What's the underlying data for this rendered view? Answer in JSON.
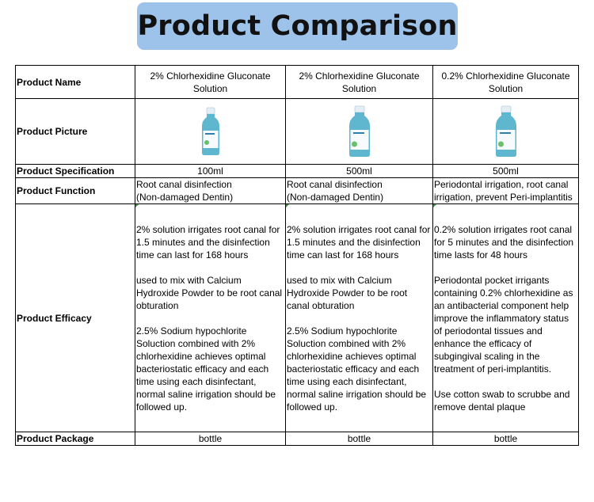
{
  "title": "Product Comparison",
  "labels": {
    "name": "Product Name",
    "picture": "Product Picture",
    "spec": "Product Specification",
    "function": "Product Function",
    "efficacy": "Product Efficacy",
    "package": "Product Package"
  },
  "products": [
    {
      "name": "2% Chlorhexidine Gluconate Solution",
      "bottle_icon": "small-bottle-icon",
      "spec": "100ml",
      "function": [
        "Root canal disinfection",
        "(Non-damaged Dentin)"
      ],
      "efficacy": [
        "2% solution irrigates root canal for 1.5 minutes and the disinfection time can last for 168 hours",
        "used to mix with Calcium Hydroxide Powder to be root canal obturation",
        "2.5% Sodium hypochlorite Soluction combined with 2% chlorhexidine achieves optimal bacteriostatic efficacy and each time using each disinfectant, normal saline irrigation should be followed up."
      ],
      "package": "bottle"
    },
    {
      "name": "2% Chlorhexidine Gluconate Solution",
      "bottle_icon": "large-bottle-icon",
      "spec": "500ml",
      "function": [
        "Root canal disinfection",
        "(Non-damaged Dentin)"
      ],
      "efficacy": [
        "2% solution irrigates root canal for 1.5 minutes and the disinfection time can last for 168 hours",
        "used to mix with Calcium Hydroxide Powder to be root canal obturation",
        "2.5% Sodium hypochlorite Soluction combined with 2% chlorhexidine achieves optimal bacteriostatic efficacy and each time using each disinfectant, normal saline irrigation should be followed up."
      ],
      "package": "bottle"
    },
    {
      "name": "0.2% Chlorhexidine Gluconate Solution",
      "bottle_icon": "large-bottle-icon",
      "spec": "500ml",
      "function": [
        "Periodontal irrigation, root canal",
        "irrigation, prevent Peri-implantitis"
      ],
      "efficacy": [
        "0.2% solution irrigates root canal for 5 minutes and the disinfection time lasts for 48 hours",
        "Periodontal pocket irrigants containing 0.2% chlorhexidine as an antibacterial component help improve the inflammatory status of periodontal tissues and enhance the efficacy of subgingival scaling in the treatment of peri-implantitis.",
        "Use cotton swab to scrubbe and remove dental plaque"
      ],
      "package": "bottle"
    }
  ],
  "colors": {
    "banner": "#9dc3ea",
    "cap": "#e4eef5",
    "liquid": "#5fb6cf",
    "label": "#ffffff",
    "mark": "#2e9e2e"
  }
}
